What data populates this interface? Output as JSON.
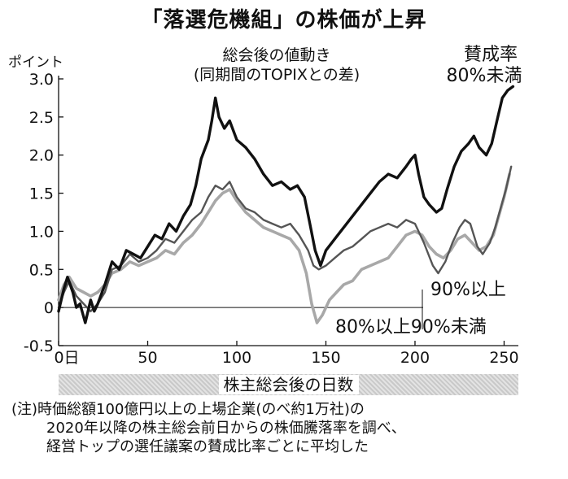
{
  "title": "「落選危機組」の株価が上昇",
  "note": {
    "line1": "(注)時価総額100億円以上の上場企業(のべ約1万社)の",
    "line2": "2020年以降の株主総会前日からの株価騰落率を調べ、",
    "line3": "経営トップの選任議案の賛成比率ごとに平均した"
  },
  "chart_data": {
    "type": "line",
    "title": "総会後の値動き",
    "subtitle": "(同期間のTOPIXとの差)",
    "ylabel": "ポイント",
    "xlabel": "株主総会後の日数",
    "xlim": [
      0,
      258
    ],
    "ylim": [
      -0.5,
      3.0
    ],
    "x_ticks": [
      0,
      50,
      100,
      150,
      200,
      250
    ],
    "x_tick_labels": [
      "0日",
      "50",
      "100",
      "150",
      "200",
      "250"
    ],
    "y_ticks": [
      -0.5,
      0,
      0.5,
      1.0,
      1.5,
      2.0,
      2.5,
      3.0
    ],
    "y_tick_labels": [
      "-0.5",
      "0",
      "0.5",
      "1.0",
      "1.5",
      "2.0",
      "2.5",
      "3.0"
    ],
    "grid": false,
    "zero_line": true,
    "series": [
      {
        "name": "80%未満",
        "label_lines": [
          "賛成率",
          "80%未満"
        ],
        "color": "#111111",
        "points": [
          [
            0,
            -0.05
          ],
          [
            3,
            0.25
          ],
          [
            5,
            0.4
          ],
          [
            8,
            0.2
          ],
          [
            10,
            0.0
          ],
          [
            12,
            0.05
          ],
          [
            15,
            -0.2
          ],
          [
            18,
            0.1
          ],
          [
            20,
            -0.05
          ],
          [
            22,
            0.05
          ],
          [
            26,
            0.3
          ],
          [
            30,
            0.6
          ],
          [
            34,
            0.5
          ],
          [
            38,
            0.75
          ],
          [
            42,
            0.7
          ],
          [
            46,
            0.65
          ],
          [
            50,
            0.8
          ],
          [
            54,
            0.95
          ],
          [
            58,
            0.9
          ],
          [
            62,
            1.1
          ],
          [
            66,
            1.0
          ],
          [
            70,
            1.2
          ],
          [
            74,
            1.35
          ],
          [
            77,
            1.6
          ],
          [
            80,
            1.95
          ],
          [
            84,
            2.2
          ],
          [
            86,
            2.45
          ],
          [
            88,
            2.75
          ],
          [
            90,
            2.5
          ],
          [
            93,
            2.35
          ],
          [
            96,
            2.45
          ],
          [
            100,
            2.2
          ],
          [
            105,
            2.1
          ],
          [
            110,
            1.95
          ],
          [
            115,
            1.75
          ],
          [
            120,
            1.6
          ],
          [
            125,
            1.65
          ],
          [
            130,
            1.55
          ],
          [
            134,
            1.6
          ],
          [
            138,
            1.45
          ],
          [
            141,
            1.1
          ],
          [
            144,
            0.75
          ],
          [
            147,
            0.55
          ],
          [
            150,
            0.75
          ],
          [
            155,
            0.9
          ],
          [
            160,
            1.05
          ],
          [
            165,
            1.2
          ],
          [
            170,
            1.35
          ],
          [
            175,
            1.5
          ],
          [
            180,
            1.65
          ],
          [
            185,
            1.75
          ],
          [
            190,
            1.7
          ],
          [
            195,
            1.85
          ],
          [
            198,
            1.95
          ],
          [
            200,
            2.0
          ],
          [
            202,
            1.75
          ],
          [
            205,
            1.45
          ],
          [
            208,
            1.35
          ],
          [
            212,
            1.25
          ],
          [
            215,
            1.3
          ],
          [
            218,
            1.55
          ],
          [
            222,
            1.85
          ],
          [
            226,
            2.05
          ],
          [
            230,
            2.15
          ],
          [
            233,
            2.25
          ],
          [
            236,
            2.1
          ],
          [
            240,
            2.0
          ],
          [
            243,
            2.15
          ],
          [
            246,
            2.45
          ],
          [
            249,
            2.75
          ],
          [
            252,
            2.85
          ],
          [
            255,
            2.9
          ]
        ]
      },
      {
        "name": "90%以上",
        "label_lines": [
          "90%以上"
        ],
        "color": "#555555",
        "points": [
          [
            0,
            0.0
          ],
          [
            3,
            0.2
          ],
          [
            6,
            0.35
          ],
          [
            10,
            0.15
          ],
          [
            14,
            0.05
          ],
          [
            18,
            -0.05
          ],
          [
            22,
            0.05
          ],
          [
            26,
            0.2
          ],
          [
            30,
            0.5
          ],
          [
            35,
            0.55
          ],
          [
            40,
            0.7
          ],
          [
            45,
            0.6
          ],
          [
            50,
            0.65
          ],
          [
            55,
            0.75
          ],
          [
            60,
            0.9
          ],
          [
            65,
            0.85
          ],
          [
            70,
            1.0
          ],
          [
            75,
            1.15
          ],
          [
            80,
            1.25
          ],
          [
            84,
            1.45
          ],
          [
            88,
            1.6
          ],
          [
            92,
            1.55
          ],
          [
            96,
            1.65
          ],
          [
            100,
            1.45
          ],
          [
            105,
            1.3
          ],
          [
            110,
            1.25
          ],
          [
            115,
            1.15
          ],
          [
            120,
            1.1
          ],
          [
            125,
            1.05
          ],
          [
            130,
            1.1
          ],
          [
            135,
            0.95
          ],
          [
            140,
            0.75
          ],
          [
            143,
            0.55
          ],
          [
            146,
            0.5
          ],
          [
            150,
            0.55
          ],
          [
            155,
            0.65
          ],
          [
            160,
            0.75
          ],
          [
            165,
            0.8
          ],
          [
            170,
            0.9
          ],
          [
            175,
            1.0
          ],
          [
            180,
            1.05
          ],
          [
            185,
            1.1
          ],
          [
            190,
            1.05
          ],
          [
            195,
            1.15
          ],
          [
            200,
            1.1
          ],
          [
            205,
            0.85
          ],
          [
            210,
            0.55
          ],
          [
            213,
            0.45
          ],
          [
            217,
            0.6
          ],
          [
            221,
            0.85
          ],
          [
            225,
            1.05
          ],
          [
            228,
            1.15
          ],
          [
            231,
            1.1
          ],
          [
            235,
            0.8
          ],
          [
            238,
            0.7
          ],
          [
            242,
            0.85
          ],
          [
            245,
            1.05
          ],
          [
            248,
            1.3
          ],
          [
            251,
            1.55
          ],
          [
            254,
            1.85
          ]
        ]
      },
      {
        "name": "80%以上90%未満",
        "label_lines": [
          "80%以上90%未満"
        ],
        "color": "#a8a8a8",
        "points": [
          [
            0,
            0.1
          ],
          [
            3,
            0.3
          ],
          [
            6,
            0.4
          ],
          [
            10,
            0.25
          ],
          [
            14,
            0.2
          ],
          [
            18,
            0.15
          ],
          [
            22,
            0.2
          ],
          [
            26,
            0.3
          ],
          [
            30,
            0.45
          ],
          [
            35,
            0.5
          ],
          [
            40,
            0.6
          ],
          [
            45,
            0.55
          ],
          [
            50,
            0.6
          ],
          [
            55,
            0.65
          ],
          [
            60,
            0.75
          ],
          [
            65,
            0.7
          ],
          [
            70,
            0.85
          ],
          [
            75,
            0.95
          ],
          [
            80,
            1.1
          ],
          [
            84,
            1.25
          ],
          [
            88,
            1.4
          ],
          [
            92,
            1.5
          ],
          [
            96,
            1.55
          ],
          [
            100,
            1.4
          ],
          [
            105,
            1.25
          ],
          [
            110,
            1.15
          ],
          [
            115,
            1.05
          ],
          [
            120,
            1.0
          ],
          [
            125,
            0.95
          ],
          [
            130,
            0.9
          ],
          [
            135,
            0.75
          ],
          [
            139,
            0.45
          ],
          [
            142,
            0.05
          ],
          [
            145,
            -0.2
          ],
          [
            148,
            -0.1
          ],
          [
            152,
            0.1
          ],
          [
            156,
            0.2
          ],
          [
            160,
            0.3
          ],
          [
            165,
            0.35
          ],
          [
            170,
            0.5
          ],
          [
            175,
            0.55
          ],
          [
            180,
            0.6
          ],
          [
            185,
            0.65
          ],
          [
            190,
            0.8
          ],
          [
            195,
            0.95
          ],
          [
            200,
            1.0
          ],
          [
            204,
            0.95
          ],
          [
            208,
            0.8
          ],
          [
            212,
            0.7
          ],
          [
            216,
            0.65
          ],
          [
            220,
            0.75
          ],
          [
            224,
            0.9
          ],
          [
            228,
            0.95
          ],
          [
            232,
            0.85
          ],
          [
            236,
            0.75
          ],
          [
            240,
            0.8
          ],
          [
            244,
            0.95
          ],
          [
            247,
            1.2
          ],
          [
            250,
            1.45
          ],
          [
            253,
            1.75
          ]
        ]
      }
    ]
  }
}
